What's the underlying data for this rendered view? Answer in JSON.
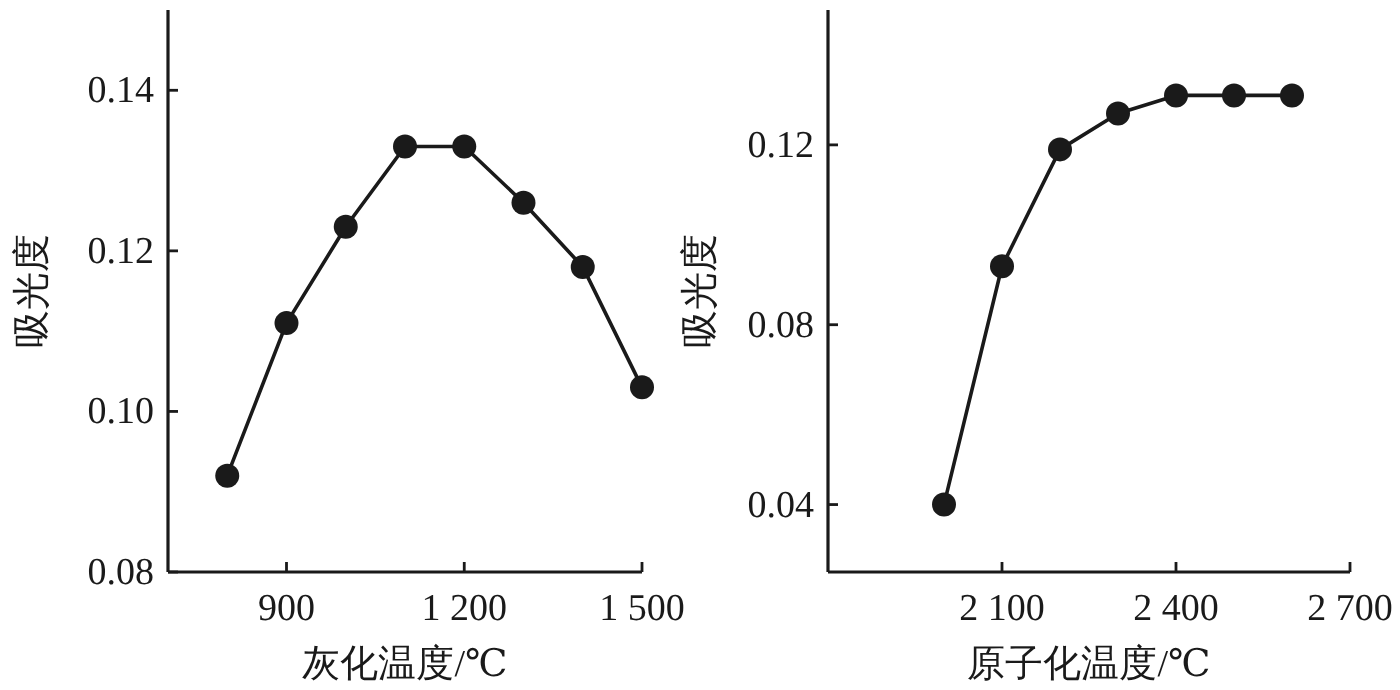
{
  "chart_data": [
    {
      "type": "line",
      "xlabel": "灰化温度/℃",
      "ylabel": "吸光度",
      "x": [
        800,
        900,
        1000,
        1100,
        1200,
        1300,
        1400,
        1500
      ],
      "series": [
        {
          "color": "#1a1a1a",
          "values": [
            0.092,
            0.111,
            0.123,
            0.133,
            0.133,
            0.126,
            0.118,
            0.103
          ]
        }
      ],
      "xlim": [
        700,
        1500
      ],
      "ylim": [
        0.08,
        0.15
      ],
      "xticks": [
        900,
        {
          "value": 1200,
          "label": "1 200"
        },
        {
          "value": 1500,
          "label": "1 500"
        }
      ],
      "yticks": [
        0.08,
        {
          "value": 0.1,
          "label": "0.10"
        },
        0.12,
        0.14
      ],
      "marker": "circle",
      "line_style": "solid",
      "grid": false
    },
    {
      "type": "line",
      "xlabel": "原子化温度/℃",
      "ylabel": "吸光度",
      "x": [
        2000,
        2100,
        2200,
        2300,
        2400,
        2500,
        2600
      ],
      "series": [
        {
          "color": "#1a1a1a",
          "values": [
            0.04,
            0.093,
            0.119,
            0.127,
            0.131,
            0.131,
            0.131
          ]
        }
      ],
      "xlim": [
        1800,
        2700
      ],
      "ylim": [
        0.025,
        0.15
      ],
      "xticks": [
        {
          "value": 2100,
          "label": "2 100"
        },
        {
          "value": 2400,
          "label": "2 400"
        },
        {
          "value": 2700,
          "label": "2 700"
        }
      ],
      "yticks": [
        0.04,
        0.08,
        0.12
      ],
      "marker": "circle",
      "line_style": "solid",
      "grid": false
    }
  ]
}
